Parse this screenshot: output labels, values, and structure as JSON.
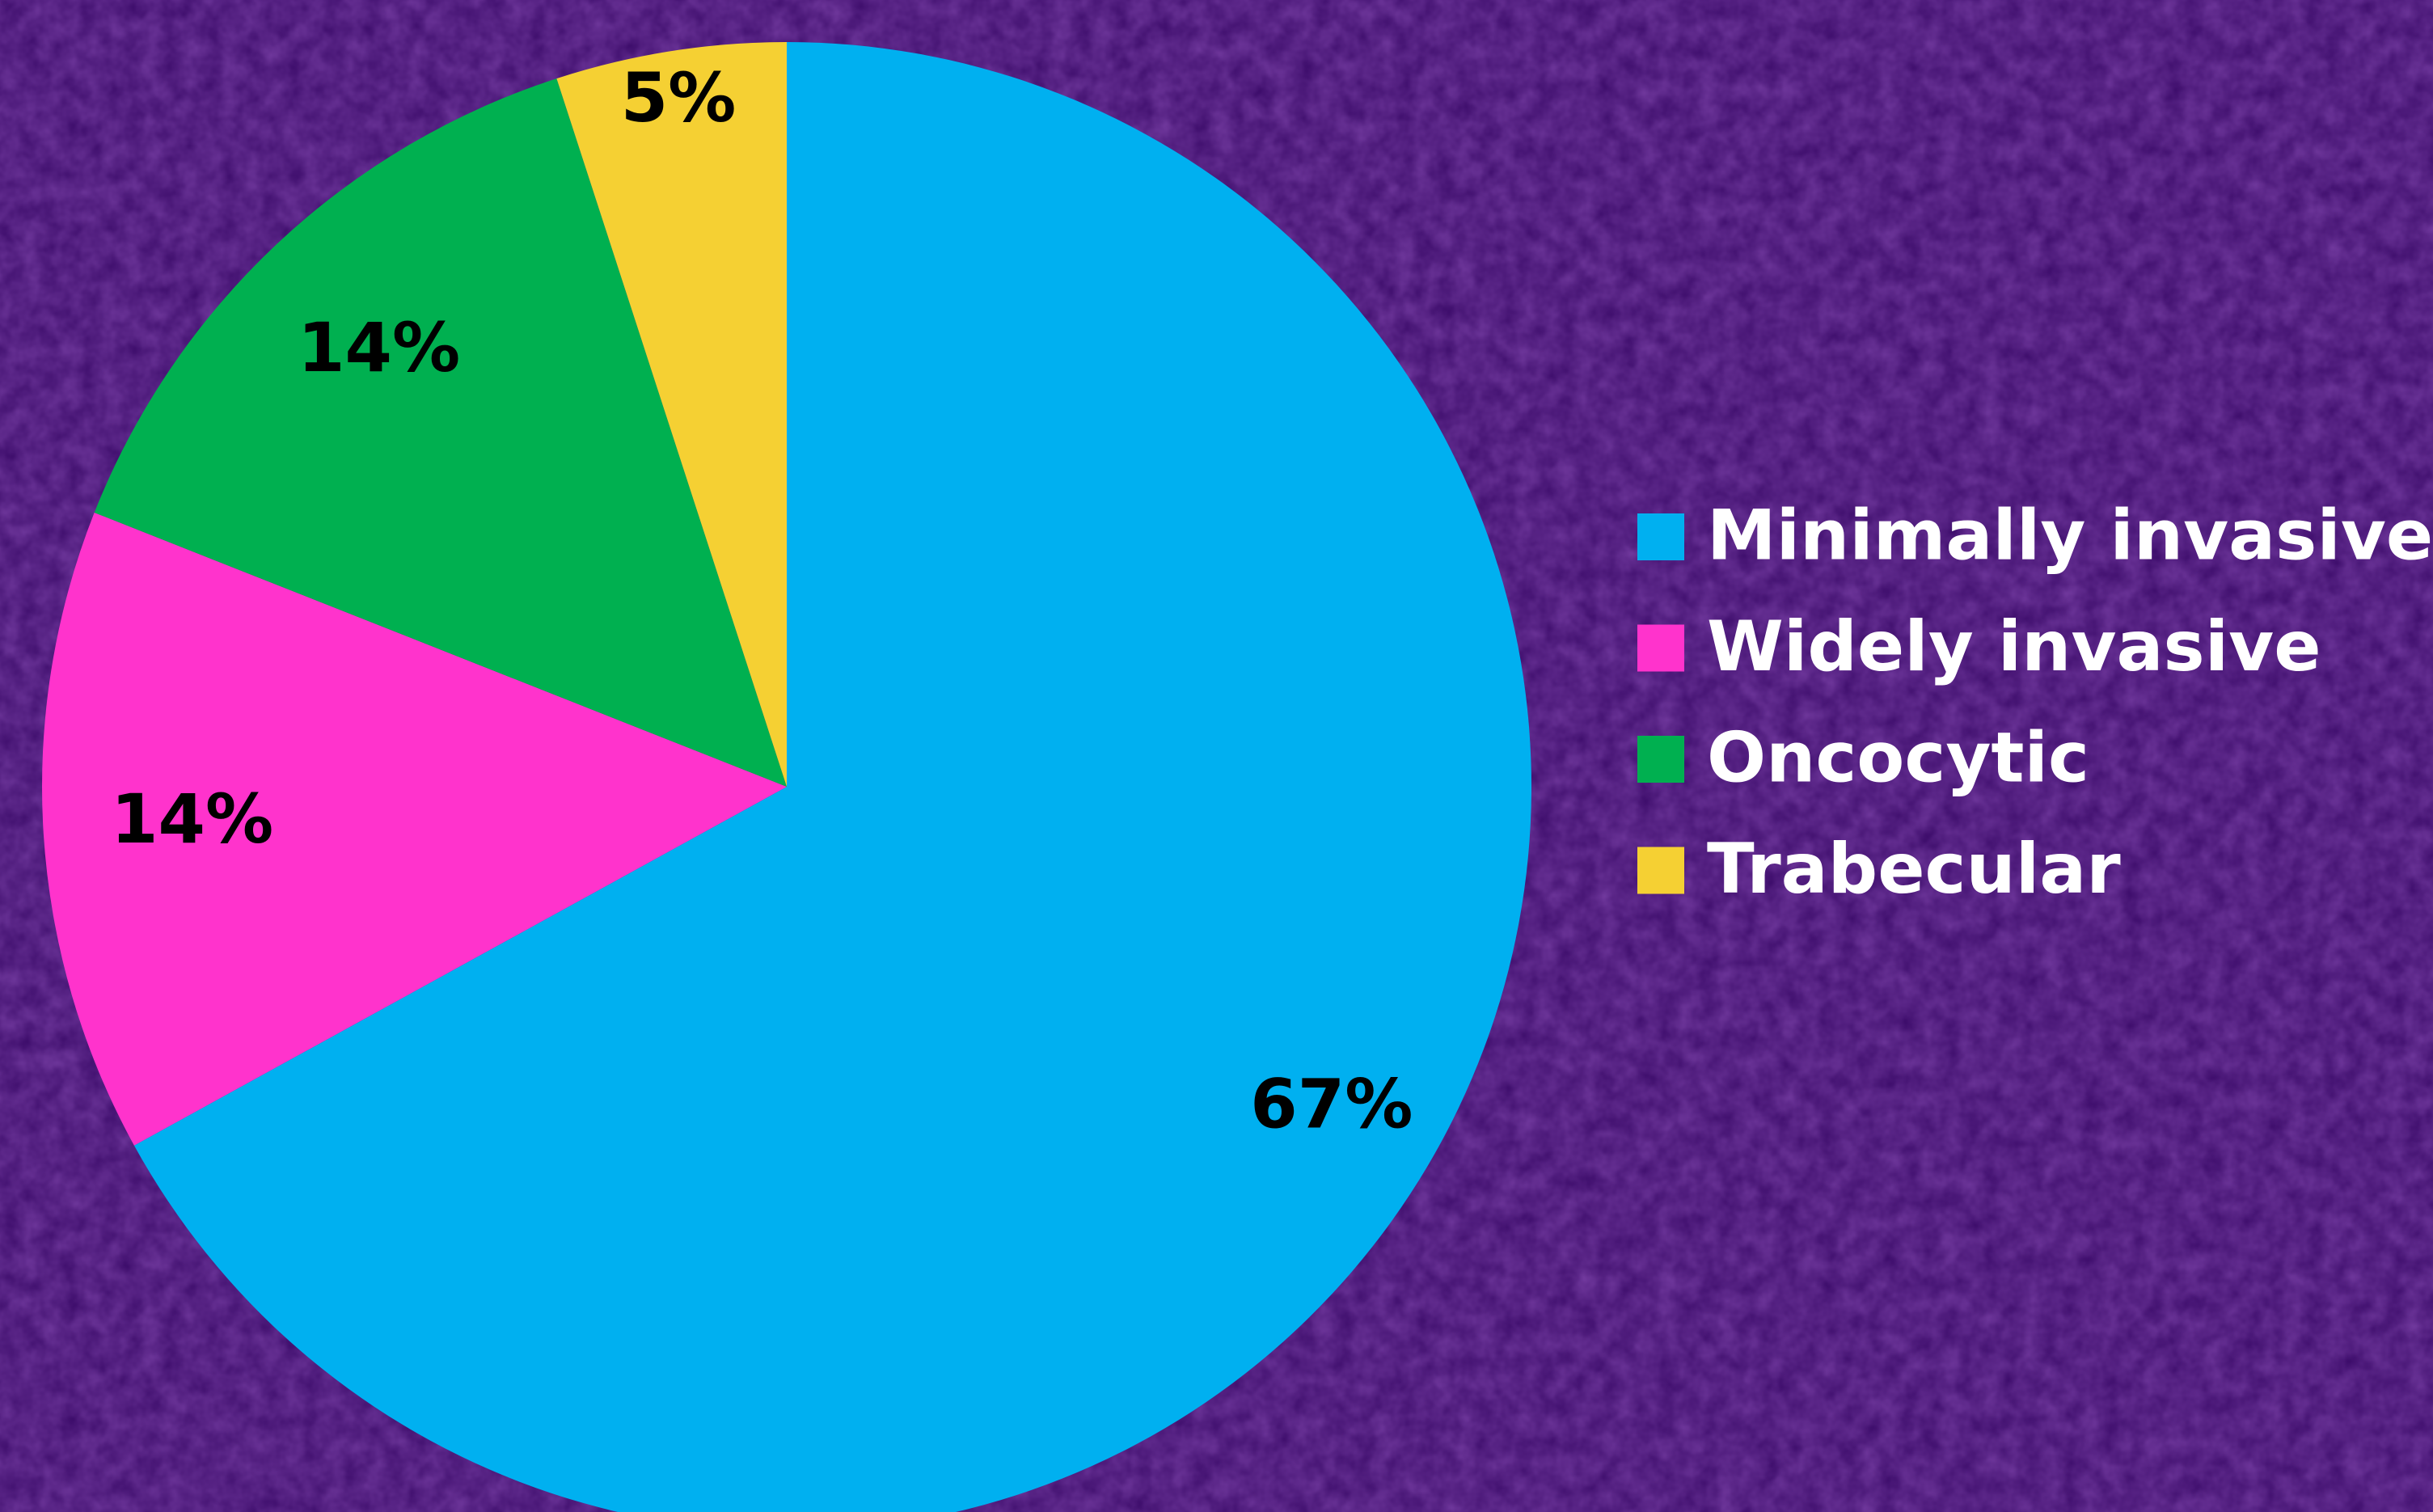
{
  "chart_data": {
    "type": "pie",
    "categories": [
      "Minimally invasive",
      "Widely invasive",
      "Oncocytic",
      "Trabecular"
    ],
    "values": [
      67,
      14,
      14,
      5
    ],
    "value_labels": [
      "67%",
      "14%",
      "14%",
      "5%"
    ],
    "colors": [
      "#00b0f0",
      "#ff33cc",
      "#00b050",
      "#f5d033"
    ],
    "legend": "right"
  }
}
